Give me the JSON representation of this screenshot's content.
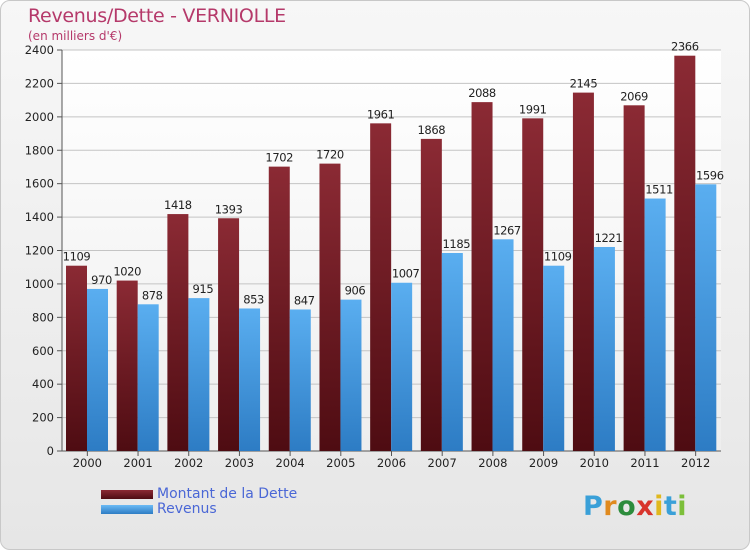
{
  "header": {
    "title": "Revenus/Dette - VERNIOLLE",
    "subtitle": "(en milliers d'€)"
  },
  "chart_data": {
    "type": "bar",
    "categories": [
      "2000",
      "2001",
      "2002",
      "2003",
      "2004",
      "2005",
      "2006",
      "2007",
      "2008",
      "2009",
      "2010",
      "2011",
      "2012"
    ],
    "series": [
      {
        "name": "Montant de la Dette",
        "values": [
          1109,
          1020,
          1418,
          1393,
          1702,
          1720,
          1961,
          1868,
          2088,
          1991,
          2145,
          2069,
          2366
        ],
        "color": "#6b1a22"
      },
      {
        "name": "Revenus",
        "values": [
          970,
          878,
          915,
          853,
          847,
          906,
          1007,
          1185,
          1267,
          1109,
          1221,
          1511,
          1596
        ],
        "color": "#4a9fe3"
      }
    ],
    "yticks": [
      0,
      200,
      400,
      600,
      800,
      1000,
      1200,
      1400,
      1600,
      1800,
      2000,
      2200,
      2400
    ],
    "ylim": [
      0,
      2400
    ],
    "grid": true,
    "legend_position": "bottom-left"
  },
  "legend": {
    "items": [
      {
        "label": "Montant de la Dette",
        "color": "#6b1a22"
      },
      {
        "label": "Revenus",
        "color": "#4a9fe3"
      }
    ]
  },
  "brand": {
    "letters": [
      {
        "ch": "P",
        "color": "#3aa0d8"
      },
      {
        "ch": "r",
        "color": "#e08a1e"
      },
      {
        "ch": "o",
        "color": "#2c8c3c"
      },
      {
        "ch": "x",
        "color": "#d8342c"
      },
      {
        "ch": "i",
        "color": "#e0b81e"
      },
      {
        "ch": "t",
        "color": "#3aa0d8"
      },
      {
        "ch": "i",
        "color": "#7cbf3a"
      }
    ]
  }
}
